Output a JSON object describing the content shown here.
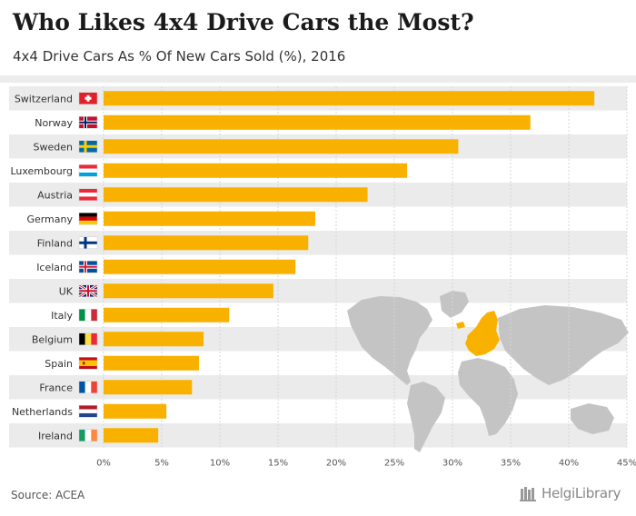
{
  "header": {
    "title": "Who Likes 4x4 Drive Cars the Most?",
    "subtitle": "4x4 Drive Cars As % Of New Cars Sold (%), 2016"
  },
  "footer": {
    "source": "Source: ACEA",
    "logo_text": "HelgiLibrary"
  },
  "colors": {
    "bar": "#f9b100",
    "stripe": "#ebebeb",
    "map_land": "#c4c4c4",
    "map_highlight": "#f9b100"
  },
  "chart_data": {
    "type": "bar",
    "orientation": "horizontal",
    "categories": [
      "Switzerland",
      "Norway",
      "Sweden",
      "Luxembourg",
      "Austria",
      "Germany",
      "Finland",
      "Iceland",
      "UK",
      "Italy",
      "Belgium",
      "Spain",
      "France",
      "Netherlands",
      "Ireland"
    ],
    "values": [
      42.2,
      36.7,
      30.5,
      26.1,
      22.7,
      18.2,
      17.6,
      16.5,
      14.6,
      10.8,
      8.6,
      8.2,
      7.6,
      5.4,
      4.7
    ],
    "xlim": [
      0,
      45
    ],
    "xticks": [
      "0%",
      "5%",
      "10%",
      "15%",
      "20%",
      "25%",
      "30%",
      "35%",
      "40%",
      "45%"
    ],
    "grid": true,
    "legend": "none",
    "flags": [
      "switzerland-flag-icon",
      "norway-flag-icon",
      "sweden-flag-icon",
      "luxembourg-flag-icon",
      "austria-flag-icon",
      "germany-flag-icon",
      "finland-flag-icon",
      "iceland-flag-icon",
      "uk-flag-icon",
      "italy-flag-icon",
      "belgium-flag-icon",
      "spain-flag-icon",
      "france-flag-icon",
      "netherlands-flag-icon",
      "ireland-flag-icon"
    ]
  }
}
